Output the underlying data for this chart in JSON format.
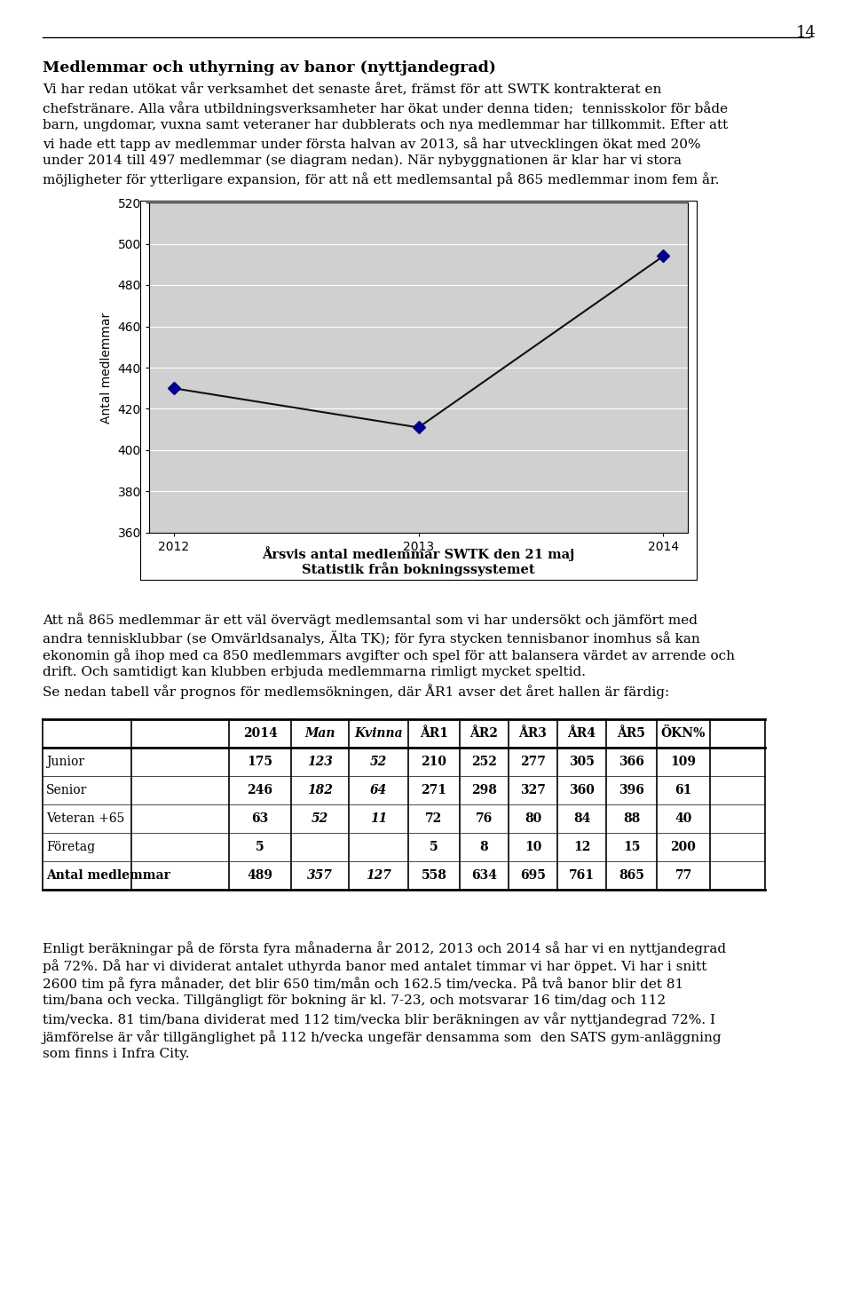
{
  "page_number": "14",
  "title": "Medlemmar och uthyrning av banor (nyttjandegrad)",
  "chart": {
    "x": [
      2012,
      2013,
      2014
    ],
    "y": [
      430,
      411,
      494
    ],
    "ylabel": "Antal medlemmar",
    "title_line1": "Årsvis antal medlemmar SWTK den 21 maj",
    "title_line2": "Statistik från bokningssystemet",
    "ylim": [
      360,
      520
    ],
    "yticks": [
      360,
      380,
      400,
      420,
      440,
      460,
      480,
      500,
      520
    ],
    "xticks": [
      2012,
      2013,
      2014
    ],
    "plot_bg_color": "#d0d0d0",
    "marker_color": "#00008b",
    "line_color": "#111111",
    "marker": "D",
    "marker_size": 7
  },
  "table": {
    "col_headers": [
      "",
      "",
      "2014",
      "Man",
      "Kvinna",
      "ÅR1",
      "ÅR2",
      "ÅR3",
      "ÅR4",
      "ÅR5",
      "ÖKN%"
    ],
    "rows": [
      [
        "Junior",
        "",
        "175",
        "123",
        "52",
        "210",
        "252",
        "277",
        "305",
        "366",
        "109"
      ],
      [
        "Senior",
        "",
        "246",
        "182",
        "64",
        "271",
        "298",
        "327",
        "360",
        "396",
        "61"
      ],
      [
        "Veteran +65",
        "",
        "63",
        "52",
        "11",
        "72",
        "76",
        "80",
        "84",
        "88",
        "40"
      ],
      [
        "Företag",
        "",
        "5",
        "",
        "",
        "5",
        "8",
        "10",
        "12",
        "15",
        "200"
      ],
      [
        "Antal medlemmar",
        "",
        "489",
        "357",
        "127",
        "558",
        "634",
        "695",
        "761",
        "865",
        "77"
      ]
    ]
  }
}
